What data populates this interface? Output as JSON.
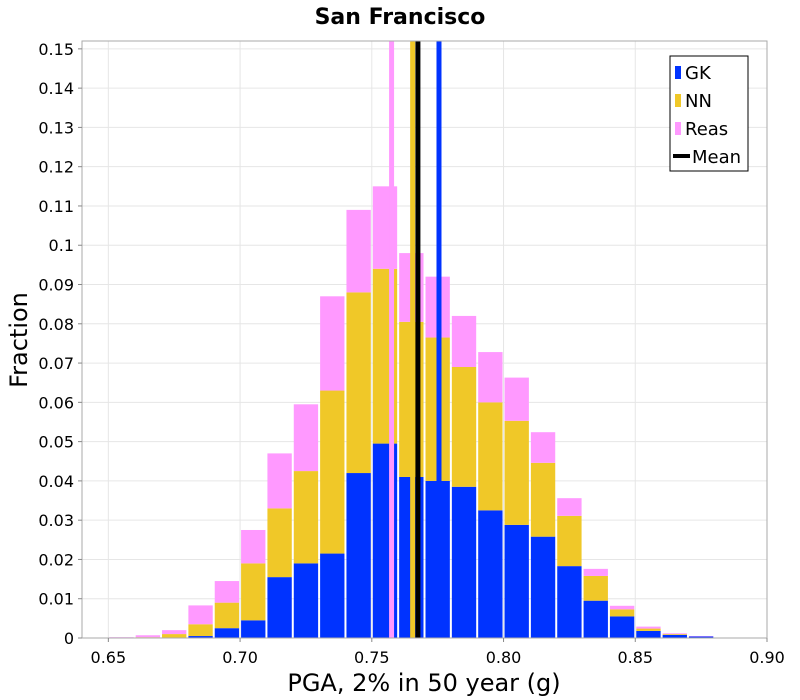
{
  "chart_data": {
    "type": "bar",
    "stacked": true,
    "title": "San Francisco",
    "xlabel": "PGA, 2% in 50 year (g)",
    "ylabel": "Fraction",
    "xlim": [
      0.64,
      0.9
    ],
    "ylim": [
      0,
      0.152
    ],
    "grid": true,
    "legend_position": "top-right",
    "x_ticks": [
      0.65,
      0.7,
      0.75,
      0.8,
      0.85,
      0.9
    ],
    "x_tick_labels": [
      "0.65",
      "0.70",
      "0.75",
      "0.80",
      "0.85",
      "0.90"
    ],
    "y_ticks": [
      0,
      0.01,
      0.02,
      0.03,
      0.04,
      0.05,
      0.06,
      0.07,
      0.08,
      0.09,
      0.1,
      0.11,
      0.12,
      0.13,
      0.14,
      0.15
    ],
    "y_tick_labels": [
      "0",
      "0.01",
      "0.02",
      "0.03",
      "0.04",
      "0.05",
      "0.06",
      "0.07",
      "0.08",
      "0.09",
      "0.1",
      "0.11",
      "0.12",
      "0.13",
      "0.14",
      "0.15"
    ],
    "bin_width": 0.01,
    "bin_starts": [
      0.65,
      0.66,
      0.67,
      0.68,
      0.69,
      0.7,
      0.71,
      0.72,
      0.73,
      0.74,
      0.75,
      0.76,
      0.77,
      0.78,
      0.79,
      0.8,
      0.81,
      0.82,
      0.83,
      0.84,
      0.85,
      0.86,
      0.87,
      0.88,
      0.89
    ],
    "series": [
      {
        "name": "GK",
        "color": "#0033ff",
        "values": [
          0,
          0,
          0,
          0.0005,
          0.0025,
          0.0045,
          0.0155,
          0.019,
          0.0215,
          0.042,
          0.0495,
          0.041,
          0.04,
          0.0385,
          0.0325,
          0.0288,
          0.0258,
          0.0183,
          0.0095,
          0.0055,
          0.0018,
          0.0008,
          0.0004,
          0.0001,
          0.0001
        ]
      },
      {
        "name": "NN",
        "color": "#f0c828",
        "values": [
          0,
          0.0002,
          0.001,
          0.003,
          0.0065,
          0.0145,
          0.0175,
          0.0235,
          0.0415,
          0.046,
          0.0445,
          0.0395,
          0.0365,
          0.0305,
          0.0275,
          0.0265,
          0.0188,
          0.0128,
          0.0063,
          0.0018,
          0.0006,
          0.0002,
          0,
          0,
          0
        ]
      },
      {
        "name": "Reas",
        "color": "#ff99ff",
        "values": [
          0.0002,
          0.0005,
          0.001,
          0.0048,
          0.0055,
          0.0085,
          0.014,
          0.017,
          0.024,
          0.021,
          0.021,
          0.0175,
          0.0155,
          0.013,
          0.0128,
          0.011,
          0.0078,
          0.0045,
          0.0018,
          0.0009,
          0.0005,
          0.0002,
          0.0001,
          0,
          0
        ]
      }
    ],
    "vertical_lines": [
      {
        "name": "Reas",
        "color": "#ff99ff",
        "x": 0.7575
      },
      {
        "name": "NN",
        "color": "#f0c828",
        "x": 0.7655
      },
      {
        "name": "Mean",
        "color": "#000000",
        "x": 0.7675
      },
      {
        "name": "GK",
        "color": "#0033ff",
        "x": 0.7755
      }
    ],
    "legend": [
      {
        "label": "GK",
        "color": "#0033ff",
        "kind": "bar"
      },
      {
        "label": "NN",
        "color": "#f0c828",
        "kind": "bar"
      },
      {
        "label": "Reas",
        "color": "#ff99ff",
        "kind": "bar"
      },
      {
        "label": "Mean",
        "color": "#000000",
        "kind": "line"
      }
    ]
  }
}
